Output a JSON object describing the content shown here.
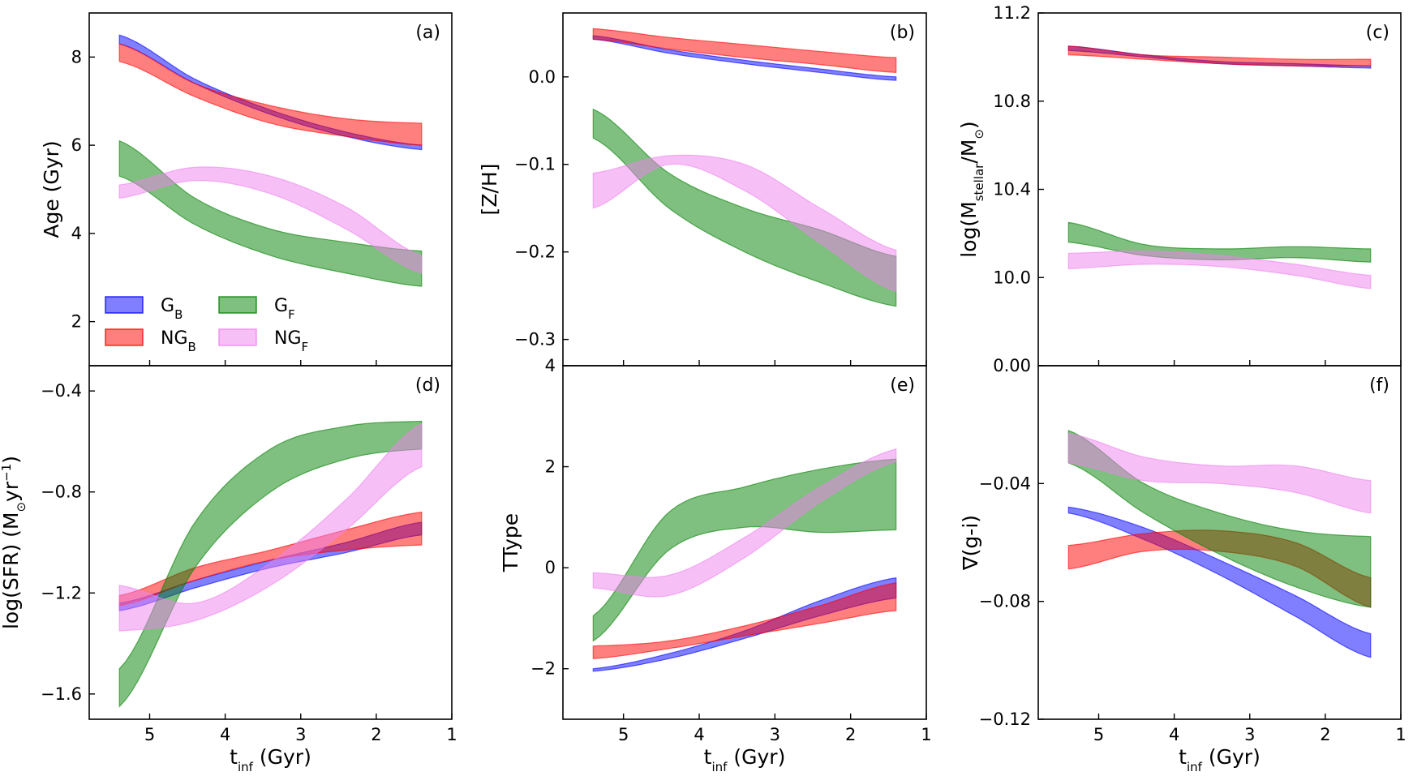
{
  "legend": {
    "entries": [
      {
        "base": "G",
        "sub": "B",
        "color": "#0000ff"
      },
      {
        "base": "NG",
        "sub": "B",
        "color": "#ff0000"
      },
      {
        "base": "G",
        "sub": "F",
        "color": "#008000"
      },
      {
        "base": "NG",
        "sub": "F",
        "color": "#ee82ee"
      }
    ]
  },
  "chart_data": [
    {
      "type": "area",
      "panel": "(a)",
      "xlabel": {
        "base": "t",
        "sub": "inf",
        "rest": " (Gyr)"
      },
      "ylabel": "Age (Gyr)",
      "xlim": [
        5.8,
        1.0
      ],
      "ylim": [
        1.0,
        9.0
      ],
      "xticks": [
        5,
        4,
        3,
        2,
        1
      ],
      "yticks": [
        2,
        4,
        6,
        8
      ],
      "xtick_labels": [
        "5",
        "4",
        "3",
        "2",
        "1"
      ],
      "ytick_labels": [
        "2",
        "4",
        "6",
        "8"
      ],
      "show_xticklabels": false,
      "series": [
        {
          "name": "G_B",
          "color": "#0000ff",
          "x": [
            5.4,
            4.4,
            3.4,
            2.4,
            1.4
          ],
          "lower": [
            8.3,
            7.4,
            6.7,
            6.2,
            5.9
          ],
          "upper": [
            8.5,
            7.5,
            6.8,
            6.3,
            6.0
          ]
        },
        {
          "name": "NG_B",
          "color": "#ff0000",
          "x": [
            5.4,
            4.4,
            3.4,
            2.4,
            1.4
          ],
          "lower": [
            7.9,
            7.1,
            6.5,
            6.2,
            6.0
          ],
          "upper": [
            8.3,
            7.4,
            6.9,
            6.6,
            6.5
          ]
        },
        {
          "name": "G_F",
          "color": "#008000",
          "x": [
            5.4,
            4.4,
            3.4,
            2.4,
            1.4
          ],
          "lower": [
            5.3,
            4.2,
            3.5,
            3.1,
            2.8
          ],
          "upper": [
            6.1,
            4.8,
            4.1,
            3.8,
            3.6
          ]
        },
        {
          "name": "NG_F",
          "color": "#ee82ee",
          "x": [
            5.4,
            4.4,
            3.4,
            2.4,
            1.4
          ],
          "lower": [
            4.8,
            5.2,
            4.9,
            4.1,
            3.1
          ],
          "upper": [
            5.1,
            5.5,
            5.3,
            4.6,
            3.5
          ]
        }
      ]
    },
    {
      "type": "area",
      "panel": "(b)",
      "xlabel": {
        "base": "t",
        "sub": "inf",
        "rest": " (Gyr)"
      },
      "ylabel": "[Z/H]",
      "xlim": [
        5.8,
        1.0
      ],
      "ylim": [
        -0.33,
        0.073
      ],
      "xticks": [
        5,
        4,
        3,
        2,
        1
      ],
      "yticks": [
        -0.3,
        -0.2,
        -0.1,
        0.0
      ],
      "xtick_labels": [
        "5",
        "4",
        "3",
        "2",
        "1"
      ],
      "ytick_labels": [
        "−0.3",
        "−0.2",
        "−0.1",
        "0.0"
      ],
      "show_xticklabels": false,
      "series": [
        {
          "name": "G_B",
          "color": "#0000ff",
          "x": [
            5.4,
            4.4,
            3.4,
            2.4,
            1.4
          ],
          "lower": [
            0.043,
            0.027,
            0.015,
            0.005,
            -0.004
          ],
          "upper": [
            0.047,
            0.031,
            0.019,
            0.009,
            0.0
          ]
        },
        {
          "name": "NG_B",
          "color": "#ff0000",
          "x": [
            5.4,
            4.4,
            3.4,
            2.4,
            1.4
          ],
          "lower": [
            0.043,
            0.032,
            0.022,
            0.014,
            0.005
          ],
          "upper": [
            0.055,
            0.045,
            0.037,
            0.029,
            0.022
          ]
        },
        {
          "name": "G_F",
          "color": "#008000",
          "x": [
            5.4,
            4.4,
            3.4,
            2.4,
            1.4
          ],
          "lower": [
            -0.07,
            -0.15,
            -0.2,
            -0.235,
            -0.262
          ],
          "upper": [
            -0.037,
            -0.11,
            -0.15,
            -0.175,
            -0.205
          ]
        },
        {
          "name": "NG_F",
          "color": "#ee82ee",
          "x": [
            5.4,
            4.4,
            3.4,
            2.4,
            1.4
          ],
          "lower": [
            -0.15,
            -0.1,
            -0.13,
            -0.19,
            -0.245
          ],
          "upper": [
            -0.11,
            -0.09,
            -0.1,
            -0.15,
            -0.198
          ]
        }
      ]
    },
    {
      "type": "area",
      "panel": "(c)",
      "xlabel": {
        "base": "t",
        "sub": "inf",
        "rest": " (Gyr)"
      },
      "ylabel_parts": [
        {
          "t": "log(M",
          "s": "n"
        },
        {
          "t": "stellar",
          "s": "sub"
        },
        {
          "t": "/M",
          "s": "n"
        },
        {
          "t": "⊙",
          "s": "sub"
        },
        {
          "t": ")",
          "s": "n"
        }
      ],
      "xlim": [
        5.8,
        1.0
      ],
      "ylim": [
        9.6,
        11.2
      ],
      "xticks": [
        5,
        4,
        3,
        2,
        1
      ],
      "yticks": [
        10.0,
        10.4,
        10.8,
        11.2
      ],
      "xtick_labels": [
        "5",
        "4",
        "3",
        "2",
        "1"
      ],
      "ytick_labels": [
        "10.0",
        "10.4",
        "10.8",
        "11.2"
      ],
      "show_xticklabels": false,
      "series": [
        {
          "name": "G_B",
          "color": "#0000ff",
          "x": [
            5.4,
            4.4,
            3.4,
            2.4,
            1.4
          ],
          "lower": [
            11.03,
            11.0,
            10.97,
            10.96,
            10.95
          ],
          "upper": [
            11.05,
            11.01,
            10.98,
            10.97,
            10.96
          ]
        },
        {
          "name": "NG_B",
          "color": "#ff0000",
          "x": [
            5.4,
            4.4,
            3.4,
            2.4,
            1.4
          ],
          "lower": [
            11.01,
            10.99,
            10.97,
            10.96,
            10.96
          ],
          "upper": [
            11.05,
            11.01,
            11.0,
            10.99,
            10.99
          ]
        },
        {
          "name": "G_F",
          "color": "#008000",
          "x": [
            5.4,
            4.4,
            3.4,
            2.4,
            1.4
          ],
          "lower": [
            10.16,
            10.1,
            10.08,
            10.09,
            10.07
          ],
          "upper": [
            10.25,
            10.15,
            10.13,
            10.14,
            10.13
          ]
        },
        {
          "name": "NG_F",
          "color": "#ee82ee",
          "x": [
            5.4,
            4.4,
            3.4,
            2.4,
            1.4
          ],
          "lower": [
            10.04,
            10.06,
            10.05,
            10.01,
            9.95
          ],
          "upper": [
            10.11,
            10.12,
            10.1,
            10.06,
            10.01
          ]
        }
      ]
    },
    {
      "type": "area",
      "panel": "(d)",
      "xlabel": {
        "base": "t",
        "sub": "inf",
        "rest": " (Gyr)"
      },
      "ylabel_parts": [
        {
          "t": "log(SFR) (M",
          "s": "n"
        },
        {
          "t": "⊙",
          "s": "sub"
        },
        {
          "t": "yr",
          "s": "n"
        },
        {
          "t": "−1",
          "s": "sup"
        },
        {
          "t": ")",
          "s": "n"
        }
      ],
      "xlim": [
        5.8,
        1.0
      ],
      "ylim": [
        -1.7,
        -0.3
      ],
      "xticks": [
        5,
        4,
        3,
        2,
        1
      ],
      "yticks": [
        -1.6,
        -1.2,
        -0.8,
        -0.4
      ],
      "xtick_labels": [
        "5",
        "4",
        "3",
        "2",
        "1"
      ],
      "ytick_labels": [
        "−1.6",
        "−1.2",
        "−0.8",
        "−0.4"
      ],
      "show_xticklabels": true,
      "series": [
        {
          "name": "G_B",
          "color": "#0000ff",
          "x": [
            5.4,
            4.4,
            3.4,
            2.4,
            1.4
          ],
          "lower": [
            -1.27,
            -1.18,
            -1.1,
            -1.04,
            -0.97
          ],
          "upper": [
            -1.24,
            -1.15,
            -1.07,
            -1.0,
            -0.92
          ]
        },
        {
          "name": "NG_B",
          "color": "#ff0000",
          "x": [
            5.4,
            4.4,
            3.4,
            2.4,
            1.4
          ],
          "lower": [
            -1.25,
            -1.15,
            -1.07,
            -1.03,
            -1.01
          ],
          "upper": [
            -1.21,
            -1.1,
            -1.03,
            -0.95,
            -0.88
          ]
        },
        {
          "name": "G_F",
          "color": "#008000",
          "x": [
            5.4,
            4.4,
            3.4,
            2.4,
            1.4
          ],
          "lower": [
            -1.65,
            -1.1,
            -0.8,
            -0.67,
            -0.63
          ],
          "upper": [
            -1.5,
            -0.92,
            -0.63,
            -0.54,
            -0.52
          ]
        },
        {
          "name": "NG_F",
          "color": "#ee82ee",
          "x": [
            5.4,
            4.4,
            3.4,
            2.4,
            1.4
          ],
          "lower": [
            -1.35,
            -1.31,
            -1.17,
            -0.95,
            -0.7
          ],
          "upper": [
            -1.17,
            -1.24,
            -1.08,
            -0.83,
            -0.53
          ]
        }
      ]
    },
    {
      "type": "area",
      "panel": "(e)",
      "xlabel": {
        "base": "t",
        "sub": "inf",
        "rest": " (Gyr)"
      },
      "ylabel": "TType",
      "xlim": [
        5.8,
        1.0
      ],
      "ylim": [
        -3.0,
        4.0
      ],
      "xticks": [
        5,
        4,
        3,
        2,
        1
      ],
      "yticks": [
        -2,
        0,
        2,
        4
      ],
      "xtick_labels": [
        "5",
        "4",
        "3",
        "2",
        "1"
      ],
      "ytick_labels": [
        "−2",
        "0",
        "2",
        "4"
      ],
      "show_xticklabels": true,
      "series": [
        {
          "name": "G_B",
          "color": "#0000ff",
          "x": [
            5.4,
            4.4,
            3.4,
            2.4,
            1.4
          ],
          "lower": [
            -2.05,
            -1.8,
            -1.4,
            -0.95,
            -0.6
          ],
          "upper": [
            -2.0,
            -1.7,
            -1.25,
            -0.65,
            -0.2
          ]
        },
        {
          "name": "NG_B",
          "color": "#ff0000",
          "x": [
            5.4,
            4.4,
            3.4,
            2.4,
            1.4
          ],
          "lower": [
            -1.8,
            -1.6,
            -1.35,
            -1.1,
            -0.85
          ],
          "upper": [
            -1.55,
            -1.45,
            -1.15,
            -0.75,
            -0.3
          ]
        },
        {
          "name": "G_F",
          "color": "#008000",
          "x": [
            5.4,
            4.4,
            3.4,
            2.4,
            1.4
          ],
          "lower": [
            -1.45,
            0.35,
            0.8,
            0.7,
            0.75
          ],
          "upper": [
            -0.95,
            1.1,
            1.6,
            1.95,
            2.15
          ]
        },
        {
          "name": "NG_F",
          "color": "#ee82ee",
          "x": [
            5.4,
            4.4,
            3.4,
            2.4,
            1.4
          ],
          "lower": [
            -0.4,
            -0.55,
            0.2,
            1.3,
            2.1
          ],
          "upper": [
            -0.1,
            -0.15,
            0.6,
            1.6,
            2.35
          ]
        }
      ]
    },
    {
      "type": "area",
      "panel": "(f)",
      "xlabel": {
        "base": "t",
        "sub": "inf",
        "rest": " (Gyr)"
      },
      "ylabel": "∇(g-i)",
      "xlim": [
        5.8,
        1.0
      ],
      "ylim": [
        -0.12,
        0.0
      ],
      "xticks": [
        5,
        4,
        3,
        2,
        1
      ],
      "yticks": [
        -0.12,
        -0.08,
        -0.04,
        0.0
      ],
      "xtick_labels": [
        "5",
        "4",
        "3",
        "2",
        "1"
      ],
      "ytick_labels": [
        "−0.12",
        "−0.08",
        "−0.04",
        "0.00"
      ],
      "show_xticklabels": true,
      "series": [
        {
          "name": "G_B",
          "color": "#0000ff",
          "x": [
            5.4,
            4.4,
            3.4,
            2.4,
            1.4
          ],
          "lower": [
            -0.05,
            -0.059,
            -0.071,
            -0.085,
            -0.099
          ],
          "upper": [
            -0.048,
            -0.055,
            -0.066,
            -0.078,
            -0.091
          ]
        },
        {
          "name": "NG_B",
          "color": "#ff0000",
          "x": [
            5.4,
            4.4,
            3.4,
            2.4,
            1.4
          ],
          "lower": [
            -0.069,
            -0.063,
            -0.063,
            -0.068,
            -0.082
          ],
          "upper": [
            -0.061,
            -0.057,
            -0.056,
            -0.06,
            -0.072
          ]
        },
        {
          "name": "G_F",
          "color": "#008000",
          "x": [
            5.4,
            4.4,
            3.4,
            2.4,
            1.4
          ],
          "lower": [
            -0.033,
            -0.05,
            -0.064,
            -0.075,
            -0.082
          ],
          "upper": [
            -0.022,
            -0.04,
            -0.05,
            -0.056,
            -0.058
          ]
        },
        {
          "name": "NG_F",
          "color": "#ee82ee",
          "x": [
            5.4,
            4.4,
            3.4,
            2.4,
            1.4
          ],
          "lower": [
            -0.033,
            -0.039,
            -0.04,
            -0.043,
            -0.05
          ],
          "upper": [
            -0.023,
            -0.031,
            -0.034,
            -0.034,
            -0.039
          ]
        }
      ]
    }
  ]
}
